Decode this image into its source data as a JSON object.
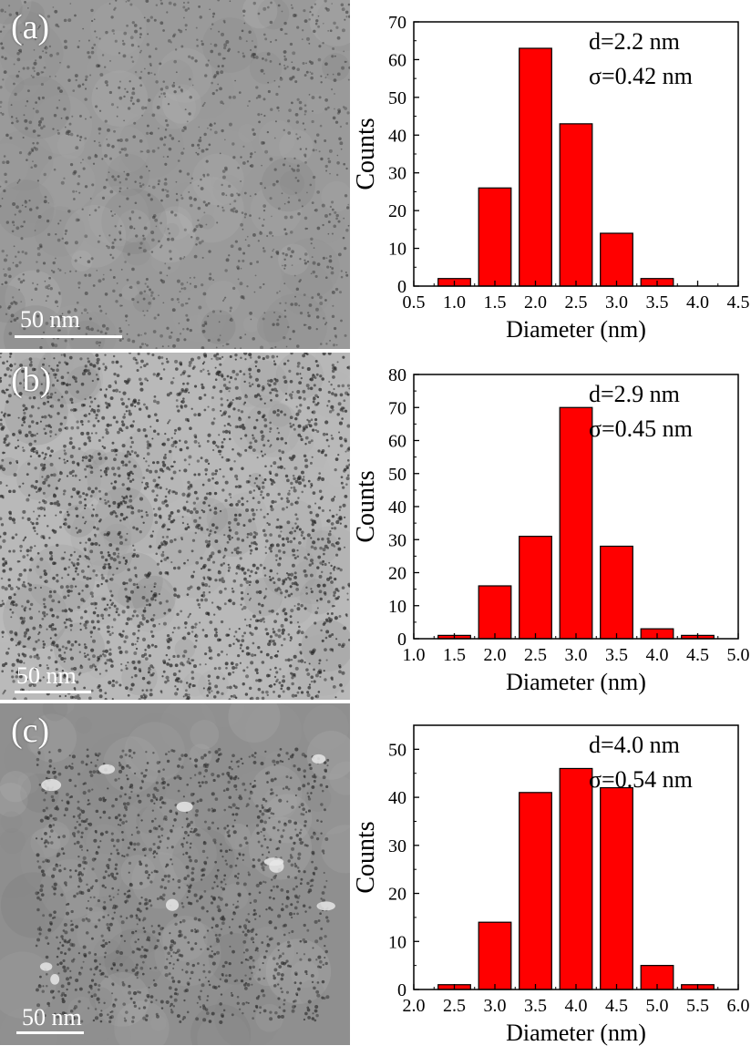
{
  "panels": [
    {
      "label": "(a)",
      "scale_bar_label": "50 nm",
      "micrograph_style": "uniform gray, small dark particles",
      "annotation_d": "d=2.2 nm",
      "annotation_sigma": "σ=0.42 nm"
    },
    {
      "label": "(b)",
      "scale_bar_label": "50 nm",
      "micrograph_style": "light gray, dense dark particles",
      "annotation_d": "d=2.9 nm",
      "annotation_sigma": "σ=0.45 nm"
    },
    {
      "label": "(c)",
      "scale_bar_label": "50 nm",
      "micrograph_style": "medium gray, particle clusters",
      "annotation_d": "d=4.0 nm",
      "annotation_sigma": "σ=0.54 nm"
    }
  ],
  "colors": {
    "bar_fill": "#ff0000",
    "bar_stroke": "#000000",
    "axis": "#000000"
  },
  "chart_data": [
    {
      "type": "bar",
      "xlabel": "Diameter (nm)",
      "ylabel": "Counts",
      "x_bin_centers": [
        1.0,
        1.5,
        2.0,
        2.5,
        3.0,
        3.5
      ],
      "values": [
        2,
        26,
        63,
        43,
        14,
        2
      ],
      "bin_width": 0.5,
      "xlim": [
        0.5,
        4.5
      ],
      "ylim": [
        0,
        70
      ],
      "xticks": [
        "0.5",
        "1.0",
        "1.5",
        "2.0",
        "2.5",
        "3.0",
        "3.5",
        "4.0",
        "4.5"
      ],
      "yticks": [
        "0",
        "10",
        "20",
        "30",
        "40",
        "50",
        "60",
        "70"
      ]
    },
    {
      "type": "bar",
      "xlabel": "Diameter (nm)",
      "ylabel": "Counts",
      "x_bin_centers": [
        1.5,
        2.0,
        2.5,
        3.0,
        3.5,
        4.0,
        4.5
      ],
      "values": [
        1,
        16,
        31,
        70,
        28,
        3,
        1
      ],
      "bin_width": 0.5,
      "xlim": [
        1.0,
        5.0
      ],
      "ylim": [
        0,
        80
      ],
      "xticks": [
        "1.0",
        "1.5",
        "2.0",
        "2.5",
        "3.0",
        "3.5",
        "4.0",
        "4.5",
        "5.0"
      ],
      "yticks": [
        "0",
        "10",
        "20",
        "30",
        "40",
        "50",
        "60",
        "70",
        "80"
      ]
    },
    {
      "type": "bar",
      "xlabel": "Diameter (nm)",
      "ylabel": "Counts",
      "x_bin_centers": [
        2.5,
        3.0,
        3.5,
        4.0,
        4.5,
        5.0,
        5.5
      ],
      "values": [
        1,
        14,
        41,
        46,
        42,
        5,
        1
      ],
      "bin_width": 0.5,
      "xlim": [
        2.0,
        6.0
      ],
      "ylim": [
        0,
        55
      ],
      "xticks": [
        "2.0",
        "2.5",
        "3.0",
        "3.5",
        "4.0",
        "4.5",
        "5.0",
        "5.5",
        "6.0"
      ],
      "yticks": [
        "0",
        "10",
        "20",
        "30",
        "40",
        "50"
      ]
    }
  ]
}
